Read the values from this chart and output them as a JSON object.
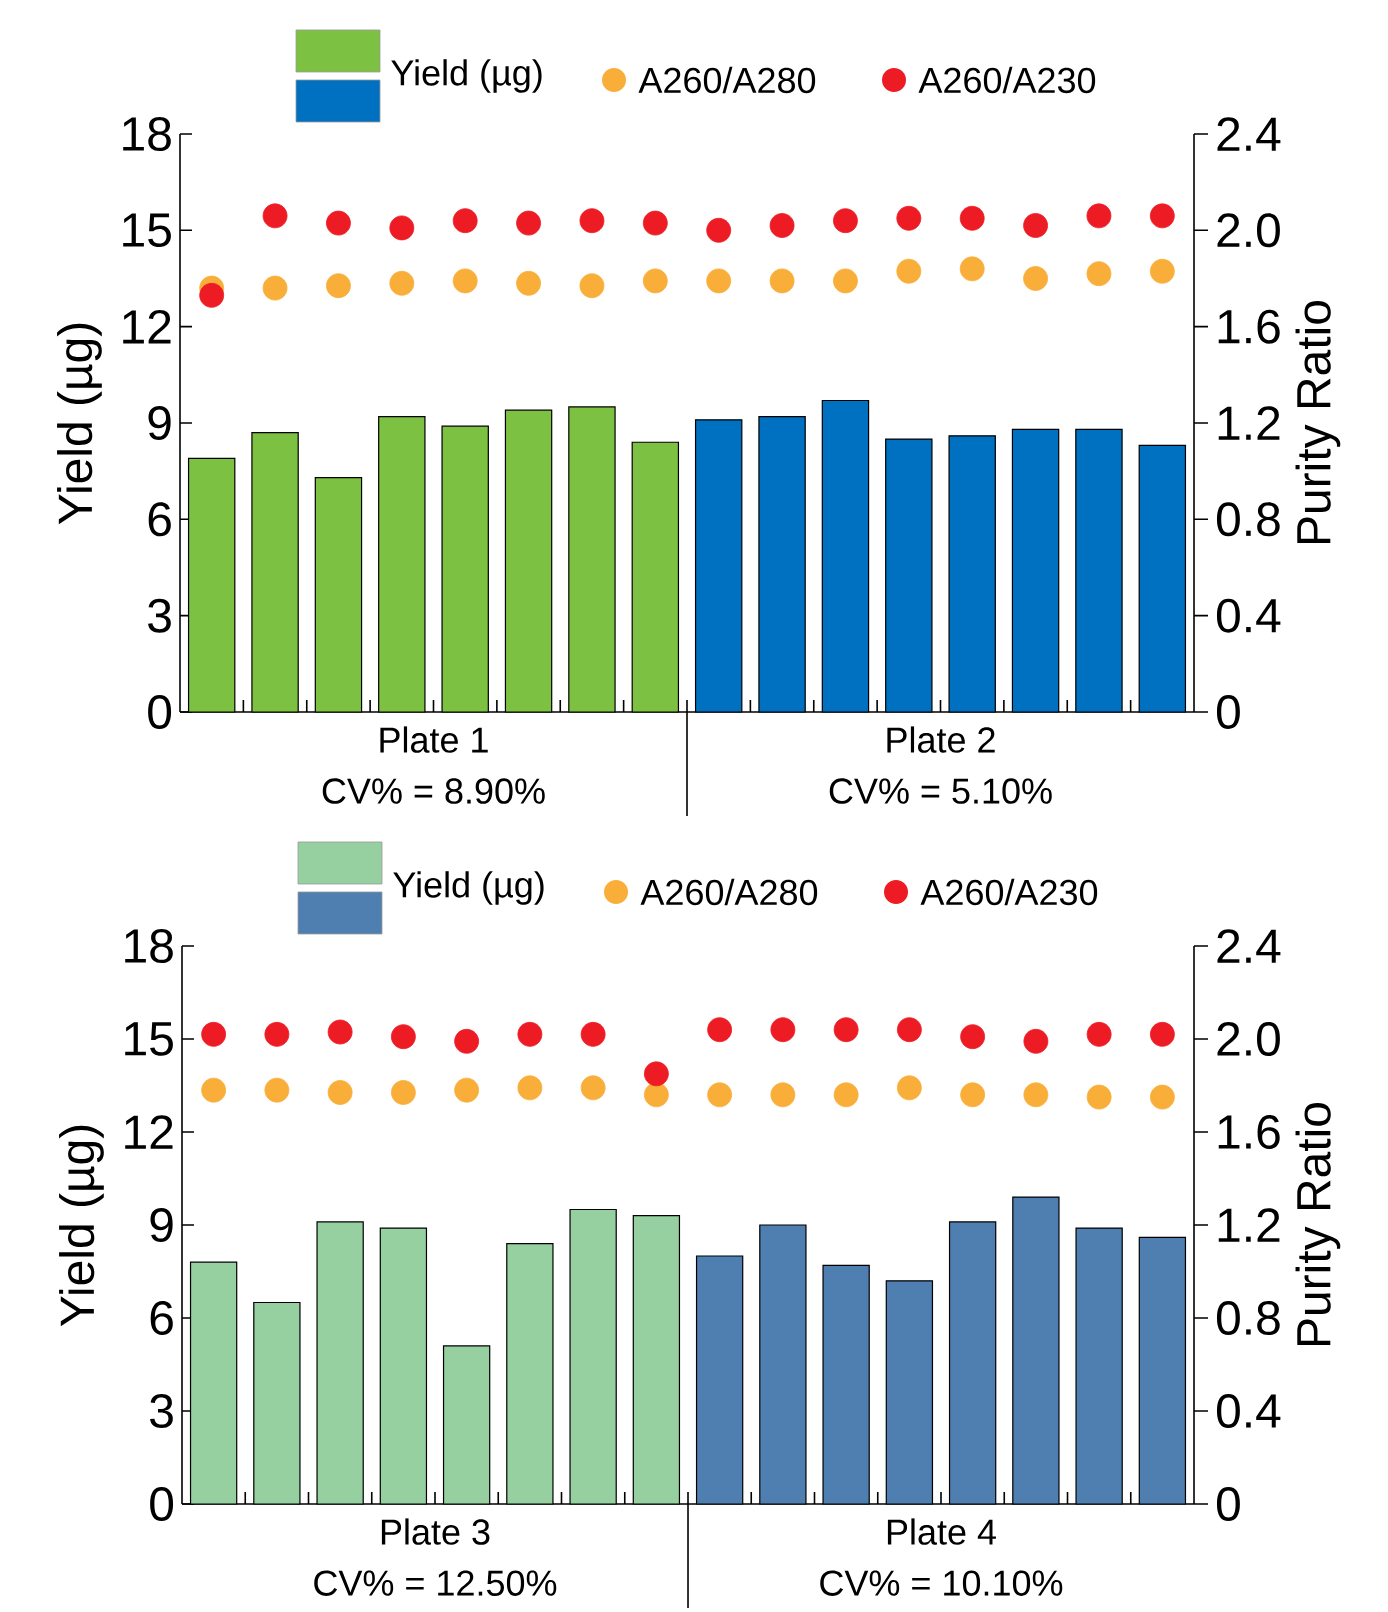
{
  "chart_data": [
    {
      "type": "bar",
      "categories": [
        null,
        null,
        null,
        null,
        null,
        null,
        null,
        null,
        null,
        null,
        null,
        null,
        null,
        null,
        null,
        null
      ],
      "ylabel": "Yield (µg)",
      "y2label": "Purity Ratio",
      "ylim": [
        0,
        18
      ],
      "yticks": [
        0,
        3,
        6,
        9,
        12,
        15,
        18
      ],
      "y2lim": [
        0,
        2.4
      ],
      "y2ticks": [
        0,
        0.4,
        0.8,
        1.2,
        1.6,
        {
          "value": 2,
          "label": "2.0"
        },
        2.4
      ],
      "tick_labels": "y",
      "legend": "top",
      "marker": "circle",
      "annotations": [
        "Plate 1",
        "CV% = 8.90%",
        "Plate 2",
        "CV% = 5.10%"
      ],
      "series": [
        {
          "name": "Yield (µg)",
          "type": "bar",
          "colors": [
            "#7dc142",
            "#7dc142",
            "#7dc142",
            "#7dc142",
            "#7dc142",
            "#7dc142",
            "#7dc142",
            "#7dc142",
            "#0070c0",
            "#0070c0",
            "#0070c0",
            "#0070c0",
            "#0070c0",
            "#0070c0",
            "#0070c0",
            "#0070c0"
          ],
          "values": [
            7.9,
            8.7,
            7.3,
            9.2,
            8.9,
            9.4,
            9.5,
            8.4,
            9.1,
            9.2,
            9.7,
            8.5,
            8.6,
            8.8,
            8.8,
            8.3
          ]
        },
        {
          "name": "A260/A280",
          "type": "scatter",
          "axis": "y2",
          "color": "#f9ae3a",
          "values": [
            1.76,
            1.76,
            1.77,
            1.78,
            1.79,
            1.78,
            1.77,
            1.79,
            1.79,
            1.79,
            1.79,
            1.83,
            1.84,
            1.8,
            1.82,
            1.83
          ]
        },
        {
          "name": "A260/A230",
          "type": "scatter",
          "axis": "y2",
          "color": "#ed1c24",
          "values": [
            1.73,
            2.06,
            2.03,
            2.01,
            2.04,
            2.03,
            2.04,
            2.03,
            2.0,
            2.02,
            2.04,
            2.05,
            2.05,
            2.02,
            2.06,
            2.06
          ]
        }
      ]
    },
    {
      "type": "bar",
      "categories": [
        null,
        null,
        null,
        null,
        null,
        null,
        null,
        null,
        null,
        null,
        null,
        null,
        null,
        null,
        null,
        null
      ],
      "ylabel": "Yield (µg)",
      "y2label": "Purity Ratio",
      "ylim": [
        0,
        18
      ],
      "yticks": [
        0,
        3,
        6,
        9,
        12,
        15,
        18
      ],
      "y2lim": [
        0,
        2.4
      ],
      "y2ticks": [
        0,
        0.4,
        0.8,
        1.2,
        1.6,
        {
          "value": 2,
          "label": "2.0"
        },
        2.4
      ],
      "tick_labels": "y",
      "legend": "top",
      "marker": "circle",
      "annotations": [
        "Plate 3",
        "CV% = 12.50%",
        "Plate 4",
        "CV% = 10.10%"
      ],
      "series": [
        {
          "name": "Yield (µg)",
          "type": "bar",
          "colors": [
            "#96d0a0",
            "#96d0a0",
            "#96d0a0",
            "#96d0a0",
            "#96d0a0",
            "#96d0a0",
            "#96d0a0",
            "#96d0a0",
            "#4e7fb0",
            "#4e7fb0",
            "#4e7fb0",
            "#4e7fb0",
            "#4e7fb0",
            "#4e7fb0",
            "#4e7fb0",
            "#4e7fb0"
          ],
          "values": [
            7.8,
            6.5,
            9.1,
            8.9,
            5.1,
            8.4,
            9.5,
            9.3,
            8.0,
            9.0,
            7.7,
            7.2,
            9.1,
            9.9,
            8.9,
            8.6
          ]
        },
        {
          "name": "A260/A280",
          "type": "scatter",
          "axis": "y2",
          "color": "#f9ae3a",
          "values": [
            1.78,
            1.78,
            1.77,
            1.77,
            1.78,
            1.79,
            1.79,
            1.76,
            1.76,
            1.76,
            1.76,
            1.79,
            1.76,
            1.76,
            1.75,
            1.75
          ]
        },
        {
          "name": "A260/A230",
          "type": "scatter",
          "axis": "y2",
          "color": "#ed1c24",
          "values": [
            2.02,
            2.02,
            2.03,
            2.01,
            1.99,
            2.02,
            2.02,
            1.85,
            2.04,
            2.04,
            2.04,
            2.04,
            2.01,
            1.99,
            2.02,
            2.02
          ]
        }
      ]
    }
  ]
}
